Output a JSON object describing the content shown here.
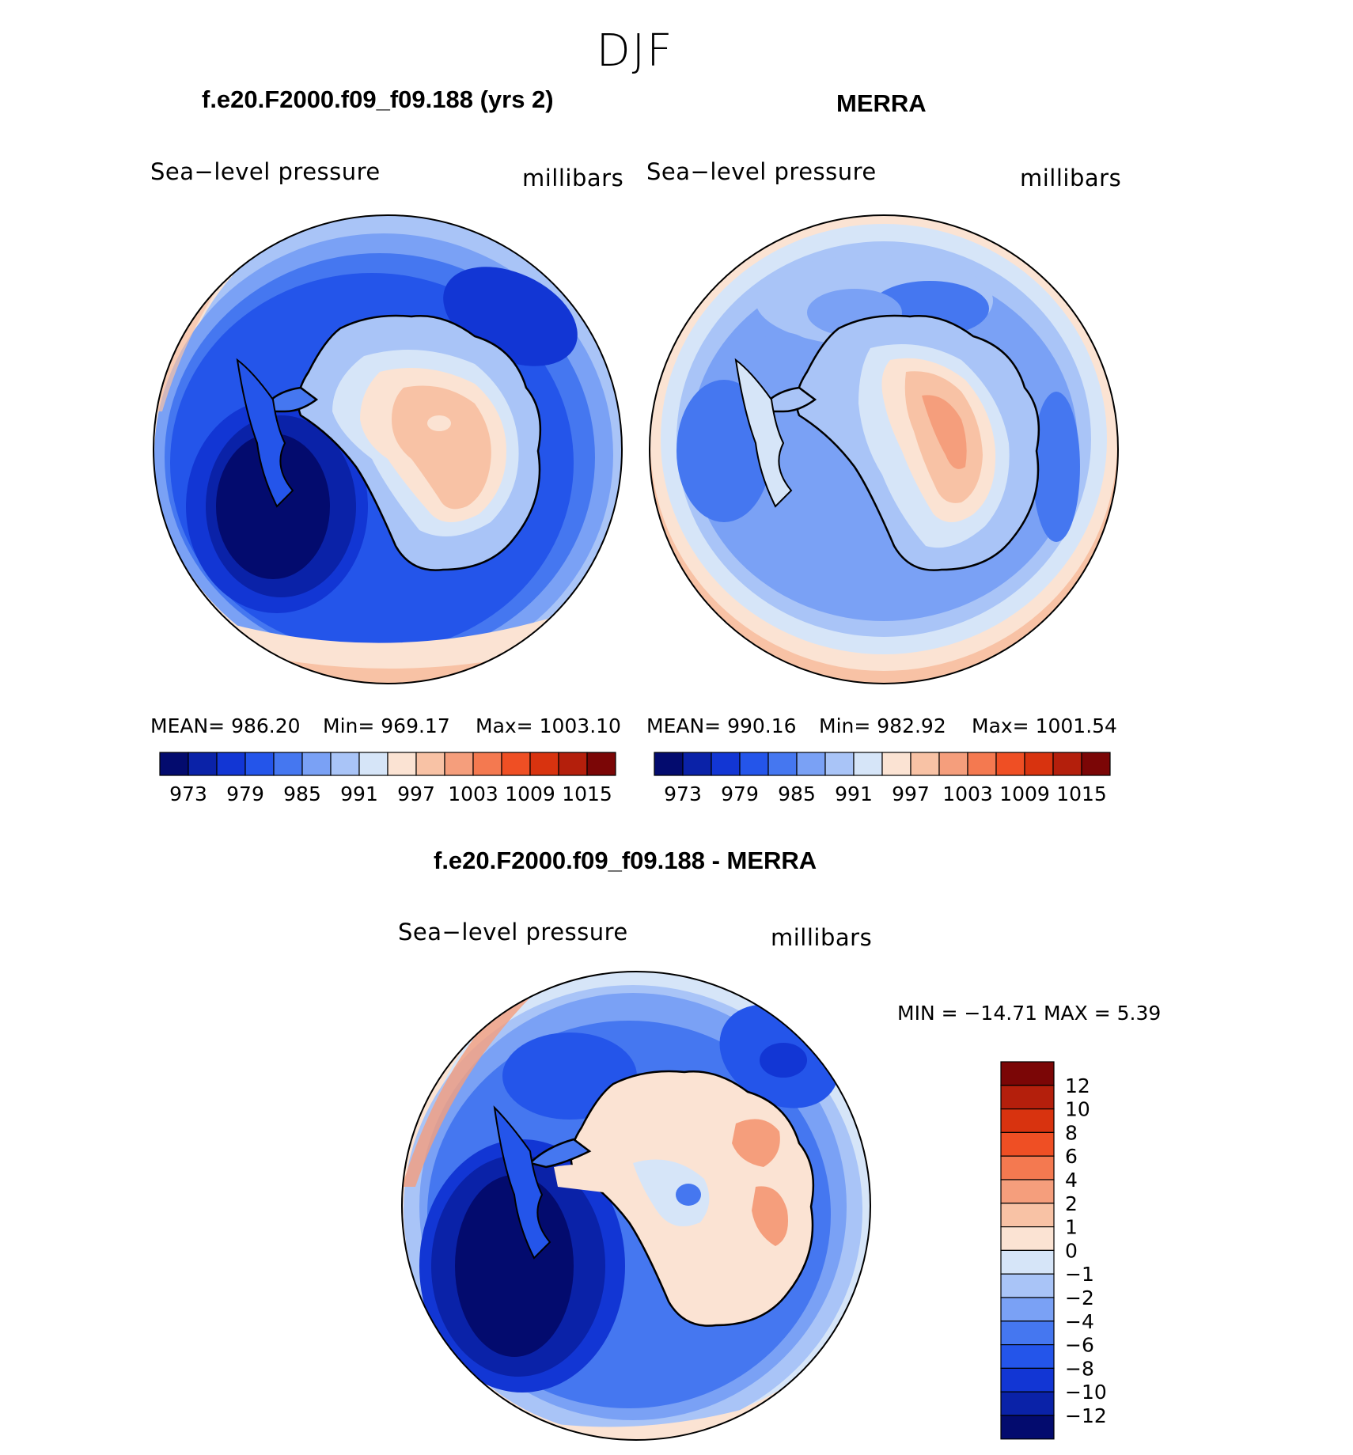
{
  "chart_data": [
    {
      "type": "heatmap",
      "season": "DJF",
      "title": "f.e20.F2000.f09_f09.188 (yrs 2)",
      "left_label": "Sea−level pressure",
      "right_label": "millibars",
      "stats": {
        "mean": "MEAN= 986.20",
        "min": "Min= 969.17",
        "max": "Max= 1003.10"
      },
      "colorbar_ticks": [
        "973",
        "979",
        "985",
        "991",
        "997",
        "1003",
        "1009",
        "1015"
      ],
      "colorbar_colors": [
        "#030b6e",
        "#0a22a8",
        "#1236d4",
        "#2455ea",
        "#4577f0",
        "#7aa1f5",
        "#a9c4f7",
        "#d6e5f8",
        "#fbe3d3",
        "#f8c2a5",
        "#f59e7c",
        "#f47950",
        "#ef4f24",
        "#d8330f",
        "#b41f0c",
        "#7b0606"
      ],
      "projection": "South polar stereographic"
    },
    {
      "type": "heatmap",
      "title": "MERRA",
      "left_label": "Sea−level pressure",
      "right_label": "millibars",
      "stats": {
        "mean": "MEAN= 990.16",
        "min": "Min= 982.92",
        "max": "Max= 1001.54"
      },
      "colorbar_ticks": [
        "973",
        "979",
        "985",
        "991",
        "997",
        "1003",
        "1009",
        "1015"
      ],
      "projection": "South polar stereographic"
    },
    {
      "type": "heatmap",
      "title": "f.e20.F2000.f09_f09.188 - MERRA",
      "left_label": "Sea−level pressure",
      "right_label": "millibars",
      "minmax_text": "MIN = −14.71 MAX =    5.39",
      "min": -14.71,
      "max": 5.39,
      "colorbar_ticks": [
        "12",
        "10",
        "8",
        "6",
        "4",
        "2",
        "1",
        "0",
        "−1",
        "−2",
        "−4",
        "−6",
        "−8",
        "−10",
        "−12"
      ],
      "colorbar_colors": [
        "#7b0606",
        "#b41f0c",
        "#d8330f",
        "#ef4f24",
        "#f47950",
        "#f59e7c",
        "#f8c2a5",
        "#fbe3d3",
        "#d6e5f8",
        "#a9c4f7",
        "#7aa1f5",
        "#4577f0",
        "#2455ea",
        "#1236d4",
        "#0a22a8",
        "#030b6e"
      ],
      "projection": "South polar stereographic"
    }
  ]
}
